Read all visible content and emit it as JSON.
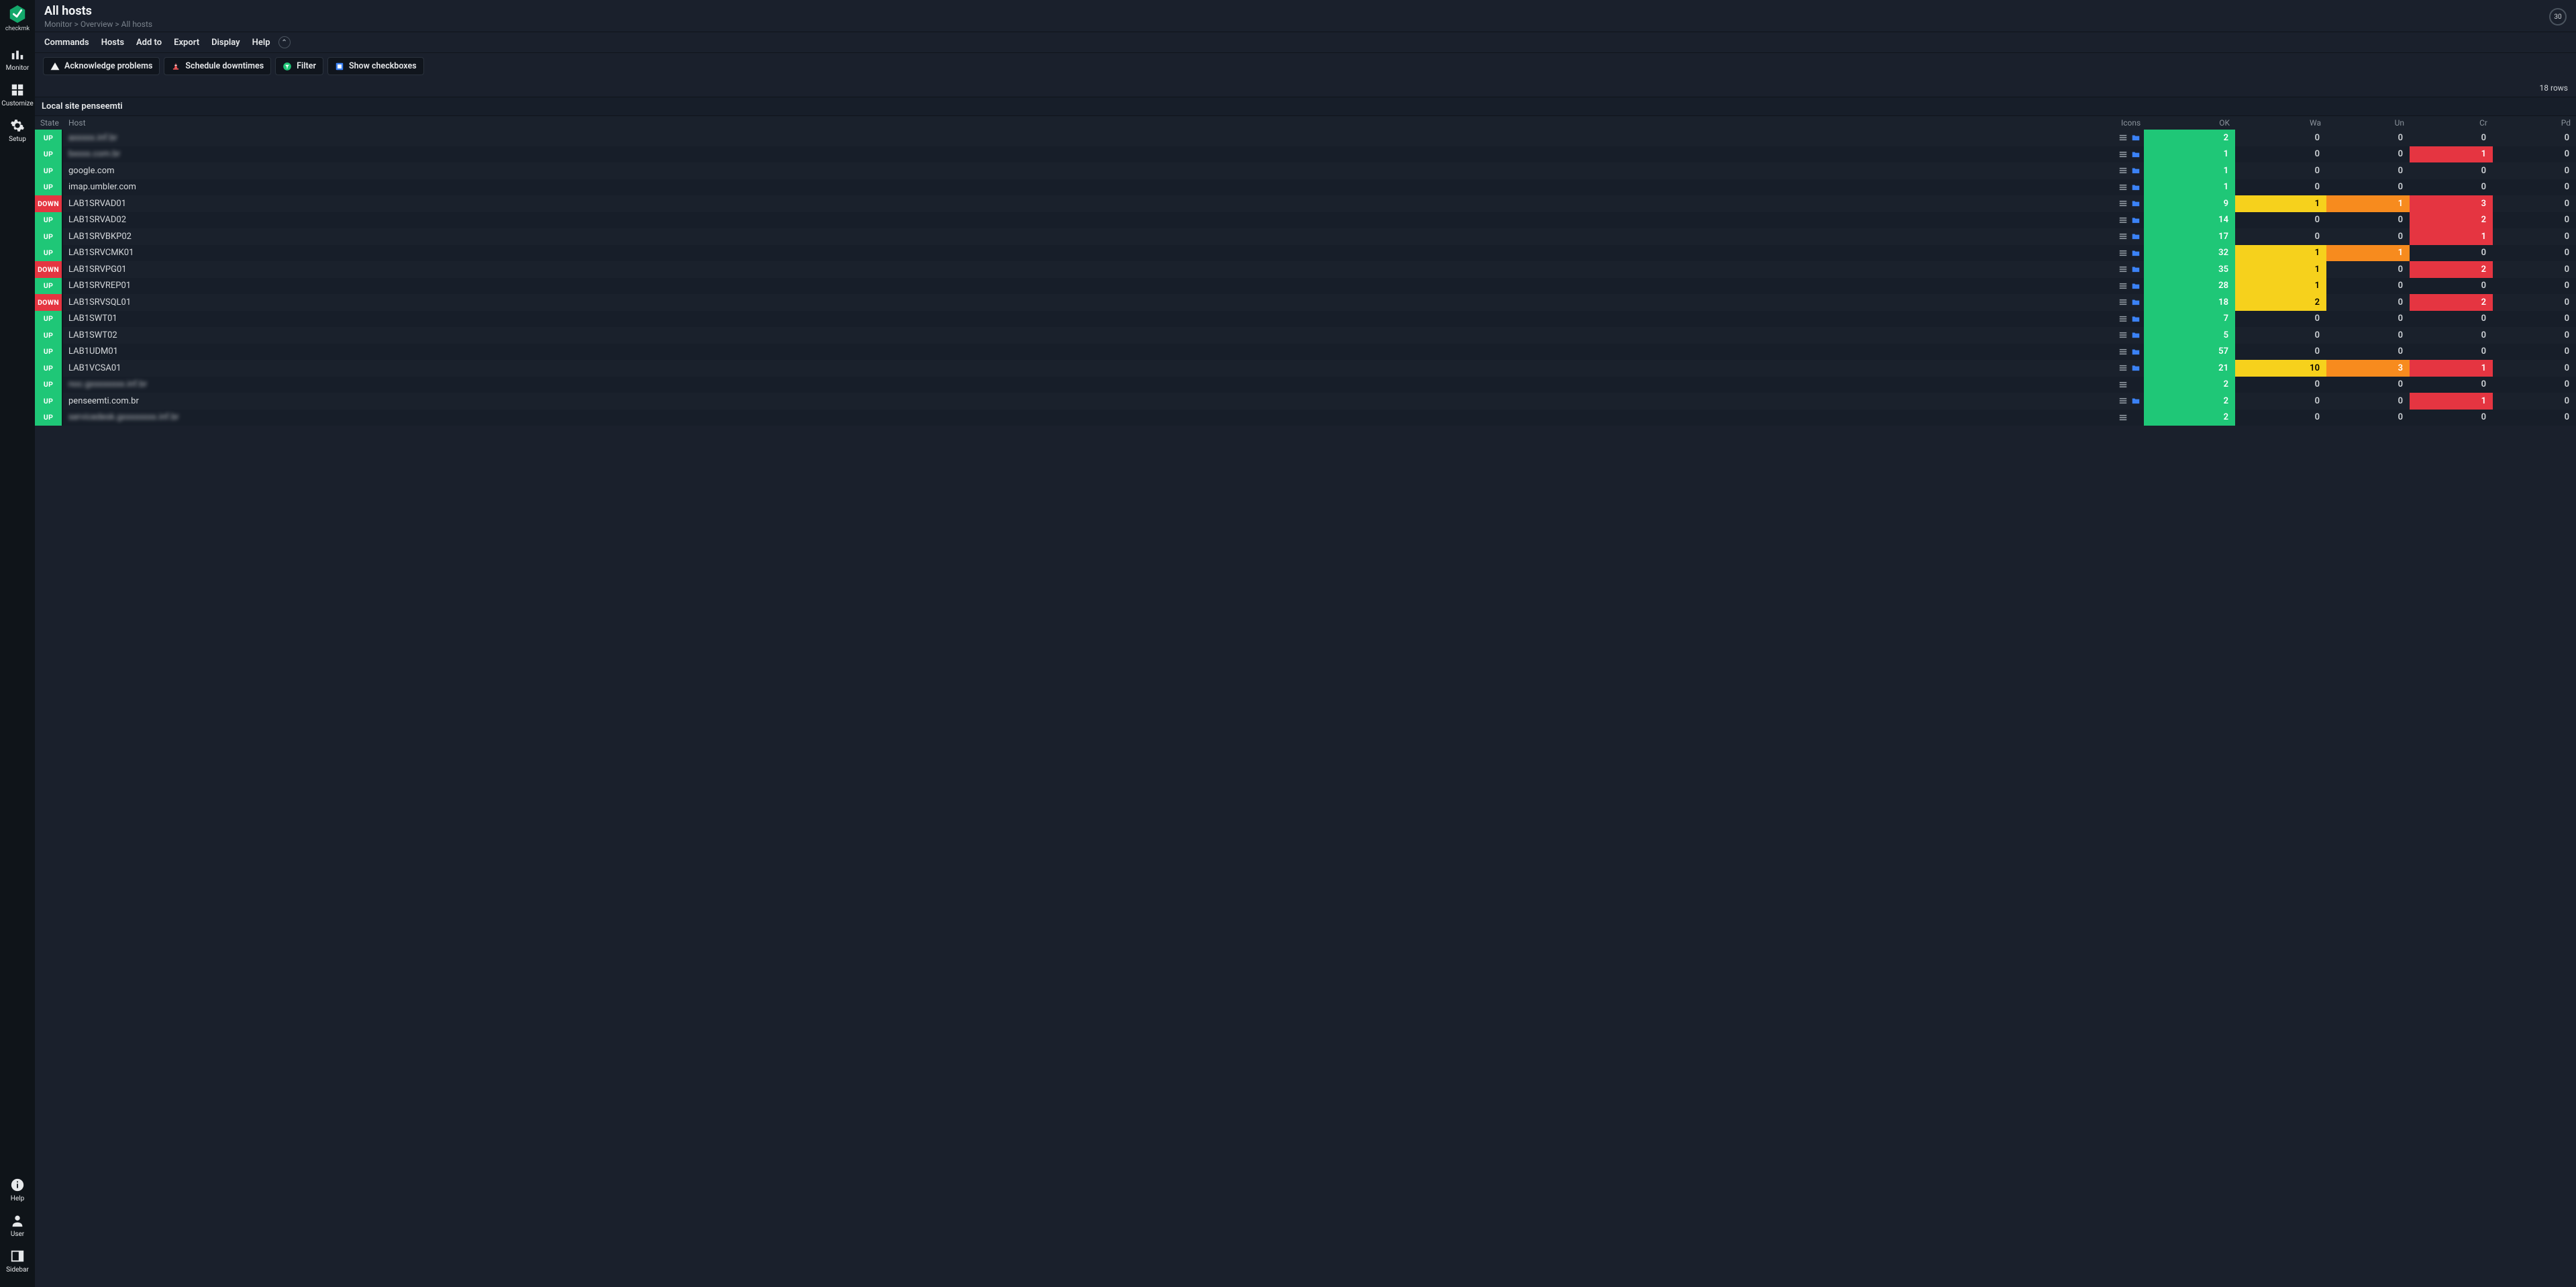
{
  "brand": "checkmk",
  "sidebar": {
    "top": [
      {
        "id": "monitor",
        "label": "Monitor"
      },
      {
        "id": "customize",
        "label": "Customize"
      },
      {
        "id": "setup",
        "label": "Setup"
      }
    ],
    "bottom": [
      {
        "id": "help",
        "label": "Help"
      },
      {
        "id": "user",
        "label": "User"
      },
      {
        "id": "sidebar",
        "label": "Sidebar"
      }
    ]
  },
  "page": {
    "title": "All hosts",
    "breadcrumb": "Monitor > Overview > All hosts",
    "refresh_seconds": "30"
  },
  "menubar": [
    "Commands",
    "Hosts",
    "Add to",
    "Export",
    "Display",
    "Help"
  ],
  "toolbar": {
    "ack": "Acknowledge problems",
    "downtime": "Schedule downtimes",
    "filter": "Filter",
    "checkbox": "Show checkboxes"
  },
  "summary": {
    "rows_label": "18 rows"
  },
  "site_header": "Local site penseemti",
  "columns": {
    "state": "State",
    "host": "Host",
    "icons": "Icons",
    "ok": "OK",
    "wa": "Wa",
    "un": "Un",
    "cr": "Cr",
    "pd": "Pd"
  },
  "colors": {
    "ok": "#1fc777",
    "warn": "#f6d11c",
    "unkn": "#f78b1e",
    "crit": "#e53541",
    "down": "#e53541",
    "bg_odd": "#1a212c",
    "bg_even": "#171e29",
    "page_bg": "#1a202c",
    "sidebar_bg": "#0f1419"
  },
  "state_labels": {
    "up": "UP",
    "down": "DOWN"
  },
  "hosts": [
    {
      "state": "UP",
      "host": "axxxxx.inf.br",
      "blur": true,
      "icons": [
        "menu",
        "wato"
      ],
      "ok": 2,
      "wa": 0,
      "un": 0,
      "cr": 0,
      "pd": 0
    },
    {
      "state": "UP",
      "host": "bxxxx.com.br",
      "blur": true,
      "icons": [
        "menu",
        "wato"
      ],
      "ok": 1,
      "wa": 0,
      "un": 0,
      "cr": 1,
      "pd": 0
    },
    {
      "state": "UP",
      "host": "google.com",
      "blur": false,
      "icons": [
        "menu",
        "wato"
      ],
      "ok": 1,
      "wa": 0,
      "un": 0,
      "cr": 0,
      "pd": 0
    },
    {
      "state": "UP",
      "host": "imap.umbler.com",
      "blur": false,
      "icons": [
        "menu",
        "wato"
      ],
      "ok": 1,
      "wa": 0,
      "un": 0,
      "cr": 0,
      "pd": 0
    },
    {
      "state": "DOWN",
      "host": "LAB1SRVAD01",
      "blur": false,
      "icons": [
        "menu",
        "wato"
      ],
      "ok": 9,
      "wa": 1,
      "un": 1,
      "cr": 3,
      "pd": 0
    },
    {
      "state": "UP",
      "host": "LAB1SRVAD02",
      "blur": false,
      "icons": [
        "menu",
        "wato"
      ],
      "ok": 14,
      "wa": 0,
      "un": 0,
      "cr": 2,
      "pd": 0
    },
    {
      "state": "UP",
      "host": "LAB1SRVBKP02",
      "blur": false,
      "icons": [
        "menu",
        "wato"
      ],
      "ok": 17,
      "wa": 0,
      "un": 0,
      "cr": 1,
      "pd": 0
    },
    {
      "state": "UP",
      "host": "LAB1SRVCMK01",
      "blur": false,
      "icons": [
        "menu",
        "wato"
      ],
      "ok": 32,
      "wa": 1,
      "un": 1,
      "cr": 0,
      "pd": 0
    },
    {
      "state": "DOWN",
      "host": "LAB1SRVPG01",
      "blur": false,
      "icons": [
        "menu",
        "wato"
      ],
      "ok": 35,
      "wa": 1,
      "un": 0,
      "cr": 2,
      "pd": 0
    },
    {
      "state": "UP",
      "host": "LAB1SRVREP01",
      "blur": false,
      "icons": [
        "menu",
        "wato"
      ],
      "ok": 28,
      "wa": 1,
      "un": 0,
      "cr": 0,
      "pd": 0
    },
    {
      "state": "DOWN",
      "host": "LAB1SRVSQL01",
      "blur": false,
      "icons": [
        "menu",
        "wato"
      ],
      "ok": 18,
      "wa": 2,
      "un": 0,
      "cr": 2,
      "pd": 0
    },
    {
      "state": "UP",
      "host": "LAB1SWT01",
      "blur": false,
      "icons": [
        "menu",
        "wato"
      ],
      "ok": 7,
      "wa": 0,
      "un": 0,
      "cr": 0,
      "pd": 0
    },
    {
      "state": "UP",
      "host": "LAB1SWT02",
      "blur": false,
      "icons": [
        "menu",
        "wato"
      ],
      "ok": 5,
      "wa": 0,
      "un": 0,
      "cr": 0,
      "pd": 0
    },
    {
      "state": "UP",
      "host": "LAB1UDM01",
      "blur": false,
      "icons": [
        "menu",
        "wato"
      ],
      "ok": 57,
      "wa": 0,
      "un": 0,
      "cr": 0,
      "pd": 0
    },
    {
      "state": "UP",
      "host": "LAB1VCSA01",
      "blur": false,
      "icons": [
        "menu",
        "wato"
      ],
      "ok": 21,
      "wa": 10,
      "un": 3,
      "cr": 1,
      "pd": 0
    },
    {
      "state": "UP",
      "host": "noc.gxxxxxxxx.inf.br",
      "blur": true,
      "icons": [
        "menu"
      ],
      "ok": 2,
      "wa": 0,
      "un": 0,
      "cr": 0,
      "pd": 0
    },
    {
      "state": "UP",
      "host": "penseemti.com.br",
      "blur": false,
      "icons": [
        "menu",
        "wato"
      ],
      "ok": 2,
      "wa": 0,
      "un": 0,
      "cr": 1,
      "pd": 0
    },
    {
      "state": "UP",
      "host": "servicedesk.gxxxxxxxx.inf.br",
      "blur": true,
      "icons": [
        "menu"
      ],
      "ok": 2,
      "wa": 0,
      "un": 0,
      "cr": 0,
      "pd": 0
    }
  ]
}
